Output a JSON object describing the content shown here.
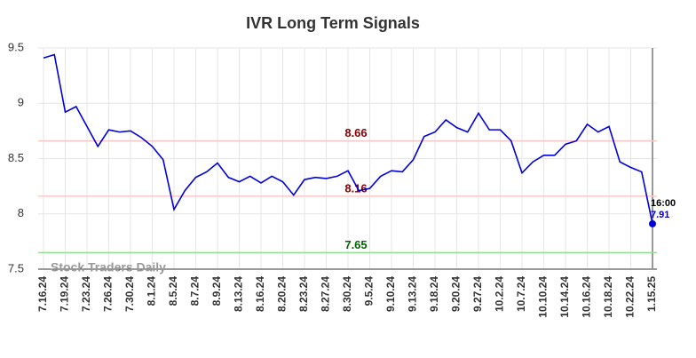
{
  "chart_data": {
    "type": "line",
    "title": "IVR Long Term Signals",
    "categories": [
      "7.16.24",
      null,
      "7.19.24",
      null,
      "7.23.24",
      null,
      "7.26.24",
      null,
      "7.30.24",
      null,
      "8.1.24",
      null,
      "8.5.24",
      null,
      "8.7.24",
      null,
      "8.9.24",
      null,
      "8.13.24",
      null,
      "8.16.24",
      null,
      "8.20.24",
      null,
      "8.23.24",
      null,
      "8.27.24",
      null,
      "8.30.24",
      null,
      "9.5.24",
      null,
      "9.10.24",
      null,
      "9.13.24",
      null,
      "9.18.24",
      null,
      "9.20.24",
      null,
      "9.27.24",
      null,
      "10.2.24",
      null,
      "10.7.24",
      null,
      "10.10.24",
      null,
      "10.14.24",
      null,
      "10.16.24",
      null,
      "10.18.24",
      null,
      "10.22.24",
      null,
      "1.15.25"
    ],
    "series": [
      {
        "name": "IVR",
        "color": "#0000dd",
        "values": [
          9.41,
          9.44,
          8.92,
          8.97,
          8.79,
          8.61,
          8.76,
          8.74,
          8.75,
          8.69,
          8.61,
          8.49,
          8.04,
          8.21,
          8.33,
          8.38,
          8.46,
          8.33,
          8.29,
          8.34,
          8.28,
          8.34,
          8.29,
          8.17,
          8.31,
          8.33,
          8.32,
          8.34,
          8.39,
          8.21,
          8.23,
          8.34,
          8.39,
          8.38,
          8.49,
          8.7,
          8.74,
          8.85,
          8.78,
          8.74,
          8.91,
          8.76,
          8.76,
          8.66,
          8.37,
          8.47,
          8.53,
          8.53,
          8.63,
          8.66,
          8.81,
          8.74,
          8.79,
          8.47,
          8.42,
          8.38,
          7.91
        ]
      }
    ],
    "ylim": [
      7.5,
      9.5
    ],
    "yticks": [
      7.5,
      8,
      8.5,
      9,
      9.5
    ],
    "grid": true,
    "hlines": [
      {
        "value": 8.66,
        "color": "#ffc8c8",
        "label_color": "#8b0000"
      },
      {
        "value": 8.16,
        "color": "#ffc8c8",
        "label_color": "#8b0000"
      },
      {
        "value": 7.65,
        "color": "#90e090",
        "label_color": "#006400"
      }
    ],
    "last_time": "16:00",
    "watermark": "Stock Traders Daily"
  }
}
